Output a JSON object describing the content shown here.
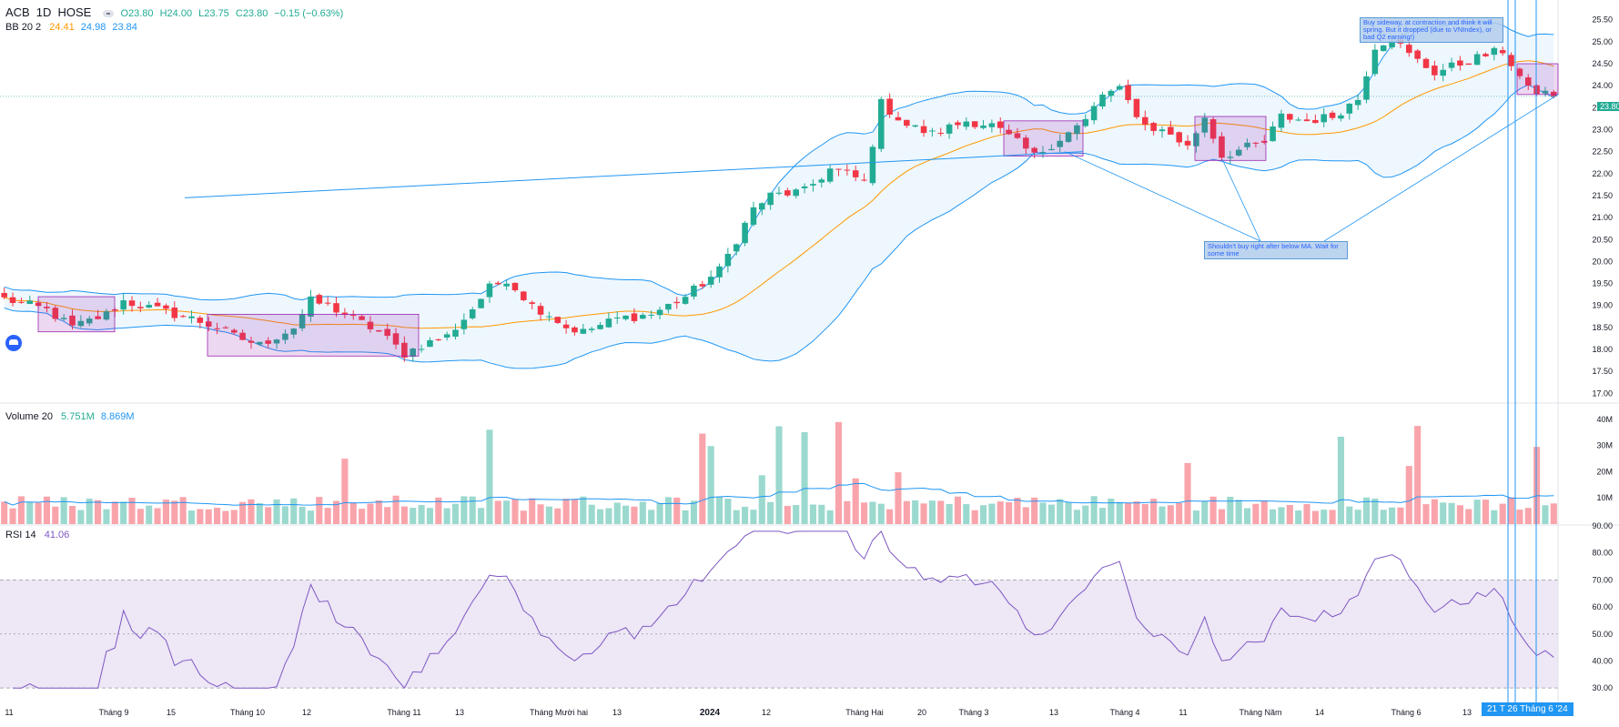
{
  "header": {
    "symbol": "ACB",
    "interval": "1D",
    "exchange": "HOSE",
    "ohlc": {
      "open": "O23.80",
      "high": "H24.00",
      "low": "L23.75",
      "close": "C23.80",
      "change": "−0.15 (−0.63%)"
    }
  },
  "indicators": {
    "bb": {
      "label": "BB 20 2",
      "basis": "24.41",
      "upper": "24.98",
      "lower": "23.84"
    },
    "volume": {
      "label": "Volume 20",
      "value": "5.751M",
      "ma": "8.869M"
    },
    "rsi": {
      "label": "RSI 14",
      "value": "41.06"
    }
  },
  "notes": {
    "top": "Buy sideway, at contraction and think it will spring. But it dropped (due to VNIndex), or bad Q2 earning!)",
    "bottom": "Shouldn't buy right after below MA. Wait for some time"
  },
  "cursor_label": "21 T  26 Tháng 6 '24",
  "last_price_label": "23.80",
  "colors": {
    "up": "#22ab94",
    "down": "#f23645",
    "bb_band": "#2196f3",
    "bb_basis": "#ff9800",
    "rsi_line": "#7e57c2",
    "rsi_band_fill": "#ede7f6",
    "box_fill": "#e1bee7",
    "box_stroke": "#9c27b0",
    "vertical_lines": "#2196f3",
    "trendline": "#2196f3"
  },
  "chart_data": [
    {
      "type": "candlestick",
      "name": "price",
      "y_ticks": [
        "25.50",
        "25.00",
        "24.50",
        "24.00",
        "23.50",
        "23.00",
        "22.50",
        "22.00",
        "21.50",
        "21.00",
        "20.50",
        "20.00",
        "19.50",
        "19.00",
        "18.50",
        "18.00",
        "17.50",
        "17.00"
      ],
      "ylim": [
        16.8,
        25.95
      ],
      "x_labels": [
        "11",
        "Tháng 9",
        "15",
        "Tháng 10",
        "12",
        "Tháng 11",
        "13",
        "Tháng Mười hai",
        "13",
        "2024",
        "12",
        "Tháng Hai",
        "20",
        "Tháng 3",
        "13",
        "Tháng 4",
        "11",
        "Tháng Năm",
        "14",
        "Tháng 6",
        "13"
      ],
      "close_points": [
        [
          0,
          19.15
        ],
        [
          5,
          18.9
        ],
        [
          8,
          18.5
        ],
        [
          12,
          18.8
        ],
        [
          14,
          19.1
        ],
        [
          18,
          18.9
        ],
        [
          22,
          18.7
        ],
        [
          25,
          18.5
        ],
        [
          27,
          18.3
        ],
        [
          30,
          18.1
        ],
        [
          34,
          18.5
        ],
        [
          36,
          19.1
        ],
        [
          38,
          19.0
        ],
        [
          42,
          18.6
        ],
        [
          44,
          18.4
        ],
        [
          47,
          17.9
        ],
        [
          49,
          18.1
        ],
        [
          52,
          18.3
        ],
        [
          54,
          18.7
        ],
        [
          57,
          19.4
        ],
        [
          59,
          19.6
        ],
        [
          62,
          19.0
        ],
        [
          64,
          18.8
        ],
        [
          66,
          18.5
        ],
        [
          68,
          18.4
        ],
        [
          72,
          18.7
        ],
        [
          76,
          18.8
        ],
        [
          80,
          19.2
        ],
        [
          84,
          19.8
        ],
        [
          86,
          20.5
        ],
        [
          88,
          21.2
        ],
        [
          90,
          21.5
        ],
        [
          94,
          21.6
        ],
        [
          97,
          22.1
        ],
        [
          99,
          22.0
        ],
        [
          101,
          21.8
        ],
        [
          103,
          23.6
        ],
        [
          106,
          23.1
        ],
        [
          109,
          22.9
        ],
        [
          113,
          23.2
        ],
        [
          116,
          23.1
        ],
        [
          119,
          22.7
        ],
        [
          121,
          22.4
        ],
        [
          124,
          22.8
        ],
        [
          127,
          23.2
        ],
        [
          129,
          23.8
        ],
        [
          131,
          23.9
        ],
        [
          134,
          23.1
        ],
        [
          137,
          22.9
        ],
        [
          139,
          22.6
        ],
        [
          141,
          23.3
        ],
        [
          143,
          22.4
        ],
        [
          146,
          22.6
        ],
        [
          148,
          22.7
        ],
        [
          150,
          23.3
        ],
        [
          153,
          23.2
        ],
        [
          156,
          23.3
        ],
        [
          159,
          23.7
        ],
        [
          161,
          24.9
        ],
        [
          163,
          25.1
        ],
        [
          165,
          24.7
        ],
        [
          168,
          24.3
        ],
        [
          171,
          24.5
        ],
        [
          174,
          24.7
        ],
        [
          176,
          24.8
        ],
        [
          179,
          23.9
        ],
        [
          182,
          23.8
        ]
      ],
      "bollinger": {
        "period": 20,
        "mult": 2
      }
    },
    {
      "type": "bar",
      "name": "volume",
      "y_ticks": [
        "40M",
        "30M",
        "20M",
        "10M"
      ],
      "ylim": [
        0,
        42
      ]
    },
    {
      "type": "line",
      "name": "RSI",
      "y_ticks": [
        "90.00",
        "80.00",
        "70.00",
        "60.00",
        "50.00",
        "40.00",
        "30.00"
      ],
      "ylim": [
        25,
        90
      ],
      "band": [
        30,
        70
      ]
    }
  ]
}
